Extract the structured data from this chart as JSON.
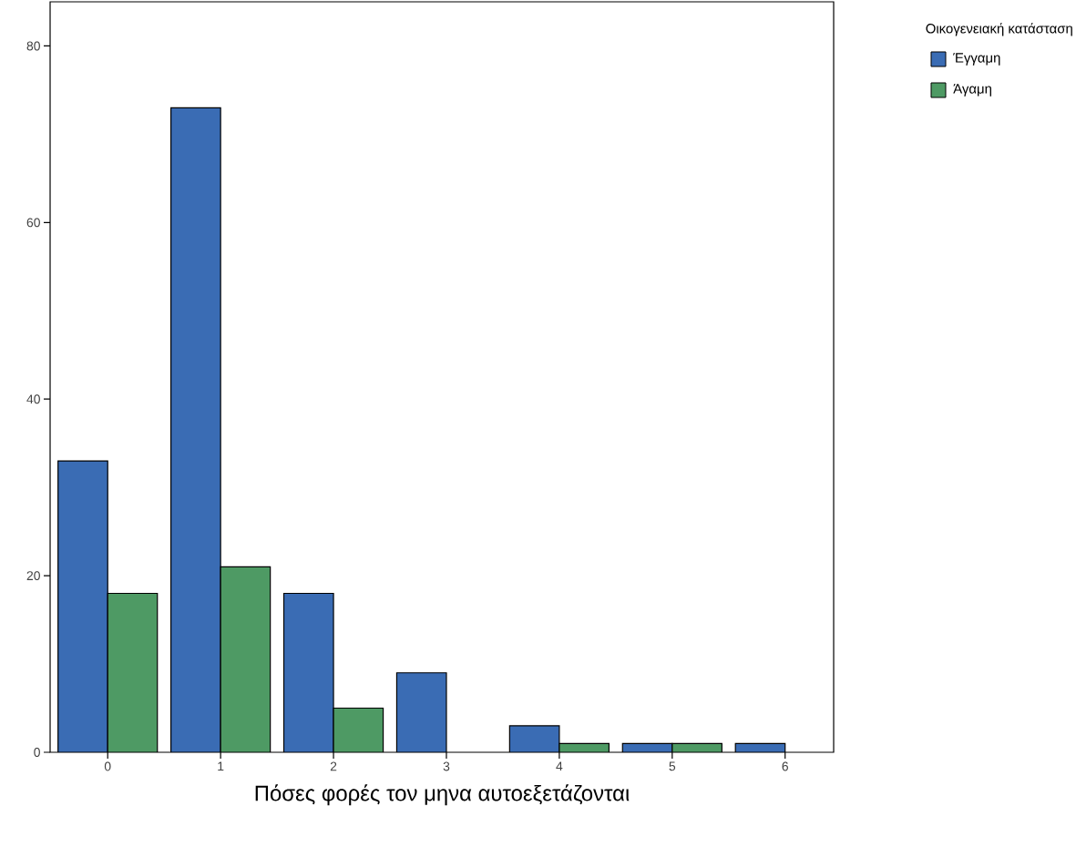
{
  "chart_data": {
    "type": "bar",
    "xlabel": "Πόσες φορές τον μηνα αυτοεξετάζονται",
    "categories": [
      "0",
      "1",
      "2",
      "3",
      "4",
      "5",
      "6"
    ],
    "series": [
      {
        "name": "Έγγαμη",
        "color": "#3a6cb4",
        "values": [
          33,
          73,
          18,
          9,
          3,
          1,
          1
        ]
      },
      {
        "name": "Άγαμη",
        "color": "#4e9a64",
        "values": [
          18,
          21,
          5,
          null,
          1,
          1,
          null
        ]
      }
    ],
    "legend_title": "Οικογενειακή κατάσταση",
    "ylim": [
      0,
      85
    ],
    "yticks": [
      0,
      20,
      40,
      60,
      80
    ],
    "grid": false,
    "legend": "top right"
  }
}
